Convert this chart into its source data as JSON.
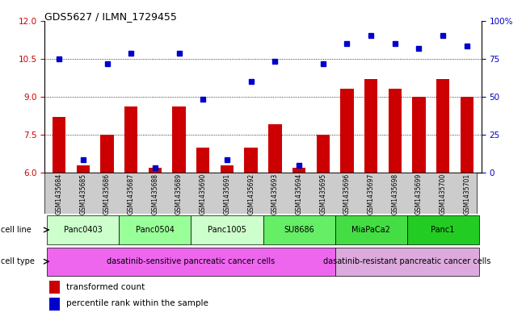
{
  "title": "GDS5627 / ILMN_1729455",
  "samples": [
    "GSM1435684",
    "GSM1435685",
    "GSM1435686",
    "GSM1435687",
    "GSM1435688",
    "GSM1435689",
    "GSM1435690",
    "GSM1435691",
    "GSM1435692",
    "GSM1435693",
    "GSM1435694",
    "GSM1435695",
    "GSM1435696",
    "GSM1435697",
    "GSM1435698",
    "GSM1435699",
    "GSM1435700",
    "GSM1435701"
  ],
  "bar_values": [
    8.2,
    6.3,
    7.5,
    8.6,
    6.2,
    8.6,
    7.0,
    6.3,
    7.0,
    7.9,
    6.2,
    7.5,
    9.3,
    9.7,
    9.3,
    9.0,
    9.7,
    9.0
  ],
  "dot_values": [
    10.5,
    6.5,
    10.3,
    10.7,
    6.2,
    10.7,
    8.9,
    6.5,
    9.6,
    10.4,
    6.3,
    10.3,
    11.1,
    11.4,
    11.1,
    10.9,
    11.4,
    11.0
  ],
  "ymin": 6,
  "ymax": 12,
  "yticks_left": [
    6,
    7.5,
    9,
    10.5,
    12
  ],
  "yticks_right_vals": [
    6,
    7.5,
    9,
    10.5,
    12
  ],
  "yticks_right_labels": [
    "0",
    "25",
    "50",
    "75",
    "100%"
  ],
  "bar_color": "#cc0000",
  "dot_color": "#0000cc",
  "cell_line_groups": [
    {
      "label": "Panc0403",
      "start": 0,
      "end": 2,
      "color": "#ccffcc"
    },
    {
      "label": "Panc0504",
      "start": 3,
      "end": 5,
      "color": "#99ff99"
    },
    {
      "label": "Panc1005",
      "start": 6,
      "end": 8,
      "color": "#ccffcc"
    },
    {
      "label": "SU8686",
      "start": 9,
      "end": 11,
      "color": "#66ee66"
    },
    {
      "label": "MiaPaCa2",
      "start": 12,
      "end": 14,
      "color": "#44dd44"
    },
    {
      "label": "Panc1",
      "start": 15,
      "end": 17,
      "color": "#22cc22"
    }
  ],
  "cell_type_groups": [
    {
      "label": "dasatinib-sensitive pancreatic cancer cells",
      "start": 0,
      "end": 11,
      "color": "#ee66ee"
    },
    {
      "label": "dasatinib-resistant pancreatic cancer cells",
      "start": 12,
      "end": 17,
      "color": "#ddaadd"
    }
  ],
  "legend_bar_label": "transformed count",
  "legend_dot_label": "percentile rank within the sample",
  "tick_label_color_left": "#cc0000",
  "tick_label_color_right": "#0000cc",
  "sample_col_bg": "#cccccc",
  "grid_lines": [
    7.5,
    9,
    10.5
  ],
  "bar_width": 0.55
}
